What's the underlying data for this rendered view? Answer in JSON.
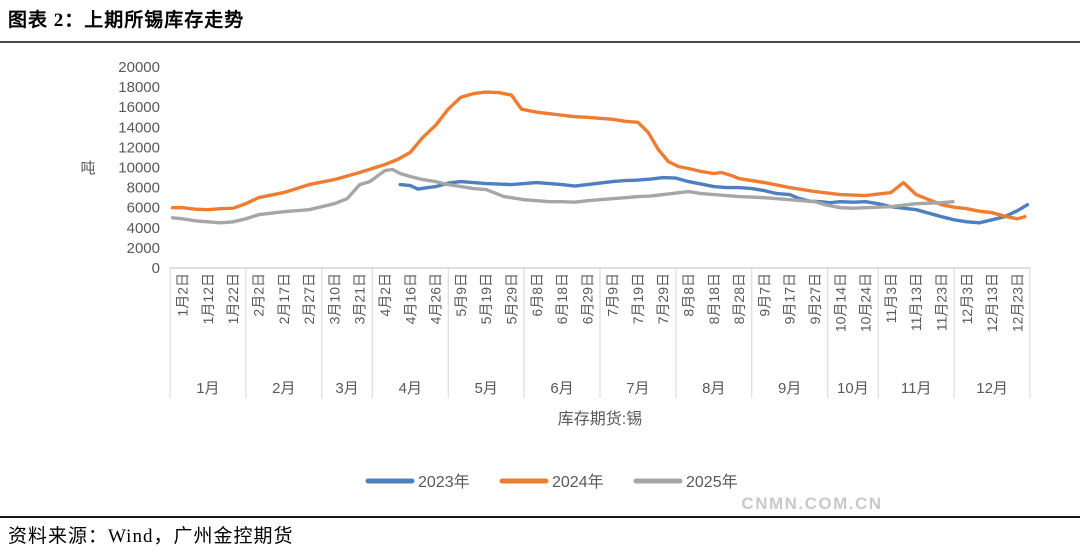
{
  "title": "图表 2：上期所锡库存走势",
  "source": "资料来源：Wind，广州金控期货",
  "watermark": "CNMN.COM.CN",
  "chart_data": {
    "type": "line",
    "title": "上期所锡库存走势",
    "unit_label": "吨",
    "xlabel": "库存期货:锡",
    "ylabel": "吨",
    "ylim": [
      0,
      20000
    ],
    "ytick_step": 2000,
    "grid": false,
    "legend_position": "bottom",
    "categories": [
      "1月2日",
      "1月12日",
      "1月22日",
      "2月2日",
      "2月17日",
      "2月27日",
      "3月10日",
      "3月21日",
      "4月2日",
      "4月16日",
      "4月26日",
      "5月9日",
      "5月19日",
      "5月29日",
      "6月8日",
      "6月18日",
      "6月29日",
      "7月9日",
      "7月19日",
      "7月29日",
      "8月8日",
      "8月18日",
      "8月28日",
      "9月7日",
      "9月17日",
      "9月27日",
      "10月14日",
      "10月24日",
      "11月3日",
      "11月13日",
      "11月23日",
      "12月3日",
      "12月13日",
      "12月23日"
    ],
    "month_groups": [
      {
        "label": "1月",
        "ticks": 3
      },
      {
        "label": "2月",
        "ticks": 3
      },
      {
        "label": "3月",
        "ticks": 2
      },
      {
        "label": "4月",
        "ticks": 3
      },
      {
        "label": "5月",
        "ticks": 3
      },
      {
        "label": "6月",
        "ticks": 3
      },
      {
        "label": "7月",
        "ticks": 3
      },
      {
        "label": "8月",
        "ticks": 3
      },
      {
        "label": "9月",
        "ticks": 3
      },
      {
        "label": "10月",
        "ticks": 2
      },
      {
        "label": "11月",
        "ticks": 3
      },
      {
        "label": "12月",
        "ticks": 3
      }
    ],
    "series": [
      {
        "name": "2023年",
        "color": "#4e80bf",
        "points": [
          [
            8.6,
            8300
          ],
          [
            9,
            8200
          ],
          [
            9.3,
            7850
          ],
          [
            9.7,
            8000
          ],
          [
            10,
            8100
          ],
          [
            10.5,
            8450
          ],
          [
            11,
            8600
          ],
          [
            11.5,
            8500
          ],
          [
            12,
            8400
          ],
          [
            12.5,
            8350
          ],
          [
            13,
            8300
          ],
          [
            13.5,
            8400
          ],
          [
            14,
            8500
          ],
          [
            14.5,
            8400
          ],
          [
            15,
            8300
          ],
          [
            15.5,
            8150
          ],
          [
            16,
            8300
          ],
          [
            16.5,
            8450
          ],
          [
            17,
            8600
          ],
          [
            17.5,
            8700
          ],
          [
            18,
            8750
          ],
          [
            18.5,
            8850
          ],
          [
            19,
            9000
          ],
          [
            19.5,
            8950
          ],
          [
            20,
            8600
          ],
          [
            20.5,
            8350
          ],
          [
            21,
            8100
          ],
          [
            21.5,
            8000
          ],
          [
            22,
            8000
          ],
          [
            22.5,
            7900
          ],
          [
            23,
            7700
          ],
          [
            23.5,
            7400
          ],
          [
            24,
            7300
          ],
          [
            24.4,
            6900
          ],
          [
            24.8,
            6650
          ],
          [
            25.2,
            6600
          ],
          [
            25.6,
            6500
          ],
          [
            26,
            6600
          ],
          [
            26.5,
            6550
          ],
          [
            27,
            6600
          ],
          [
            27.5,
            6400
          ],
          [
            28,
            6100
          ],
          [
            28.5,
            5950
          ],
          [
            29,
            5800
          ],
          [
            29.5,
            5450
          ],
          [
            30,
            5100
          ],
          [
            30.5,
            4800
          ],
          [
            31,
            4600
          ],
          [
            31.5,
            4500
          ],
          [
            32,
            4800
          ],
          [
            32.5,
            5100
          ],
          [
            33,
            5700
          ],
          [
            33.4,
            6300
          ]
        ]
      },
      {
        "name": "2024年",
        "color": "#ed7d31",
        "points": [
          [
            -0.4,
            6000
          ],
          [
            0,
            6000
          ],
          [
            0.5,
            5850
          ],
          [
            1,
            5800
          ],
          [
            1.5,
            5900
          ],
          [
            2,
            5950
          ],
          [
            2.5,
            6400
          ],
          [
            3,
            7000
          ],
          [
            3.5,
            7250
          ],
          [
            4,
            7500
          ],
          [
            4.5,
            7900
          ],
          [
            5,
            8300
          ],
          [
            5.5,
            8550
          ],
          [
            6,
            8800
          ],
          [
            6.5,
            9150
          ],
          [
            7,
            9500
          ],
          [
            7.5,
            9900
          ],
          [
            8,
            10300
          ],
          [
            8.5,
            10800
          ],
          [
            9,
            11500
          ],
          [
            9.5,
            13000
          ],
          [
            10,
            14200
          ],
          [
            10.5,
            15800
          ],
          [
            11,
            17000
          ],
          [
            11.5,
            17350
          ],
          [
            12,
            17500
          ],
          [
            12.5,
            17450
          ],
          [
            13,
            17200
          ],
          [
            13.4,
            15800
          ],
          [
            14,
            15500
          ],
          [
            14.5,
            15350
          ],
          [
            15,
            15200
          ],
          [
            15.5,
            15050
          ],
          [
            16,
            15000
          ],
          [
            16.5,
            14900
          ],
          [
            17,
            14800
          ],
          [
            17.5,
            14600
          ],
          [
            18,
            14500
          ],
          [
            18.4,
            13500
          ],
          [
            18.8,
            11800
          ],
          [
            19.2,
            10600
          ],
          [
            19.6,
            10100
          ],
          [
            20,
            9900
          ],
          [
            20.5,
            9600
          ],
          [
            21,
            9400
          ],
          [
            21.3,
            9500
          ],
          [
            21.7,
            9200
          ],
          [
            22,
            8900
          ],
          [
            22.5,
            8700
          ],
          [
            23,
            8500
          ],
          [
            23.5,
            8250
          ],
          [
            24,
            8000
          ],
          [
            24.5,
            7800
          ],
          [
            25,
            7600
          ],
          [
            25.5,
            7450
          ],
          [
            26,
            7300
          ],
          [
            26.5,
            7250
          ],
          [
            27,
            7200
          ],
          [
            27.5,
            7350
          ],
          [
            28,
            7500
          ],
          [
            28.5,
            8500
          ],
          [
            29,
            7300
          ],
          [
            29.5,
            6800
          ],
          [
            30,
            6300
          ],
          [
            30.5,
            6050
          ],
          [
            31,
            5900
          ],
          [
            31.5,
            5650
          ],
          [
            32,
            5500
          ],
          [
            32.5,
            5150
          ],
          [
            33,
            4900
          ],
          [
            33.3,
            5100
          ]
        ]
      },
      {
        "name": "2025年",
        "color": "#a6a6a6",
        "points": [
          [
            -0.4,
            5000
          ],
          [
            0,
            4900
          ],
          [
            0.5,
            4700
          ],
          [
            1,
            4600
          ],
          [
            1.5,
            4500
          ],
          [
            2,
            4600
          ],
          [
            2.5,
            4900
          ],
          [
            3,
            5300
          ],
          [
            3.5,
            5450
          ],
          [
            4,
            5600
          ],
          [
            4.5,
            5700
          ],
          [
            5,
            5800
          ],
          [
            5.5,
            6100
          ],
          [
            6,
            6400
          ],
          [
            6.5,
            6900
          ],
          [
            7,
            8300
          ],
          [
            7.4,
            8600
          ],
          [
            8,
            9700
          ],
          [
            8.3,
            9800
          ],
          [
            8.6,
            9400
          ],
          [
            9,
            9100
          ],
          [
            9.5,
            8800
          ],
          [
            10,
            8600
          ],
          [
            10.5,
            8300
          ],
          [
            11,
            8100
          ],
          [
            11.5,
            7900
          ],
          [
            12,
            7800
          ],
          [
            12.4,
            7400
          ],
          [
            12.7,
            7100
          ],
          [
            13,
            7000
          ],
          [
            13.5,
            6800
          ],
          [
            14,
            6700
          ],
          [
            14.5,
            6600
          ],
          [
            15,
            6600
          ],
          [
            15.5,
            6550
          ],
          [
            16,
            6700
          ],
          [
            16.5,
            6800
          ],
          [
            17,
            6900
          ],
          [
            17.5,
            7000
          ],
          [
            18,
            7100
          ],
          [
            18.5,
            7150
          ],
          [
            19,
            7300
          ],
          [
            19.5,
            7450
          ],
          [
            20,
            7600
          ],
          [
            20.5,
            7400
          ],
          [
            21,
            7300
          ],
          [
            21.5,
            7200
          ],
          [
            22,
            7100
          ],
          [
            22.5,
            7050
          ],
          [
            23,
            7000
          ],
          [
            23.5,
            6900
          ],
          [
            24,
            6800
          ],
          [
            24.5,
            6700
          ],
          [
            25,
            6600
          ],
          [
            25.4,
            6300
          ],
          [
            25.8,
            6100
          ],
          [
            26,
            6000
          ],
          [
            26.5,
            5950
          ],
          [
            27,
            6000
          ],
          [
            27.5,
            6050
          ],
          [
            28,
            6100
          ],
          [
            28.5,
            6250
          ],
          [
            29,
            6400
          ],
          [
            29.5,
            6450
          ],
          [
            30,
            6500
          ],
          [
            30.45,
            6600
          ]
        ]
      }
    ]
  }
}
